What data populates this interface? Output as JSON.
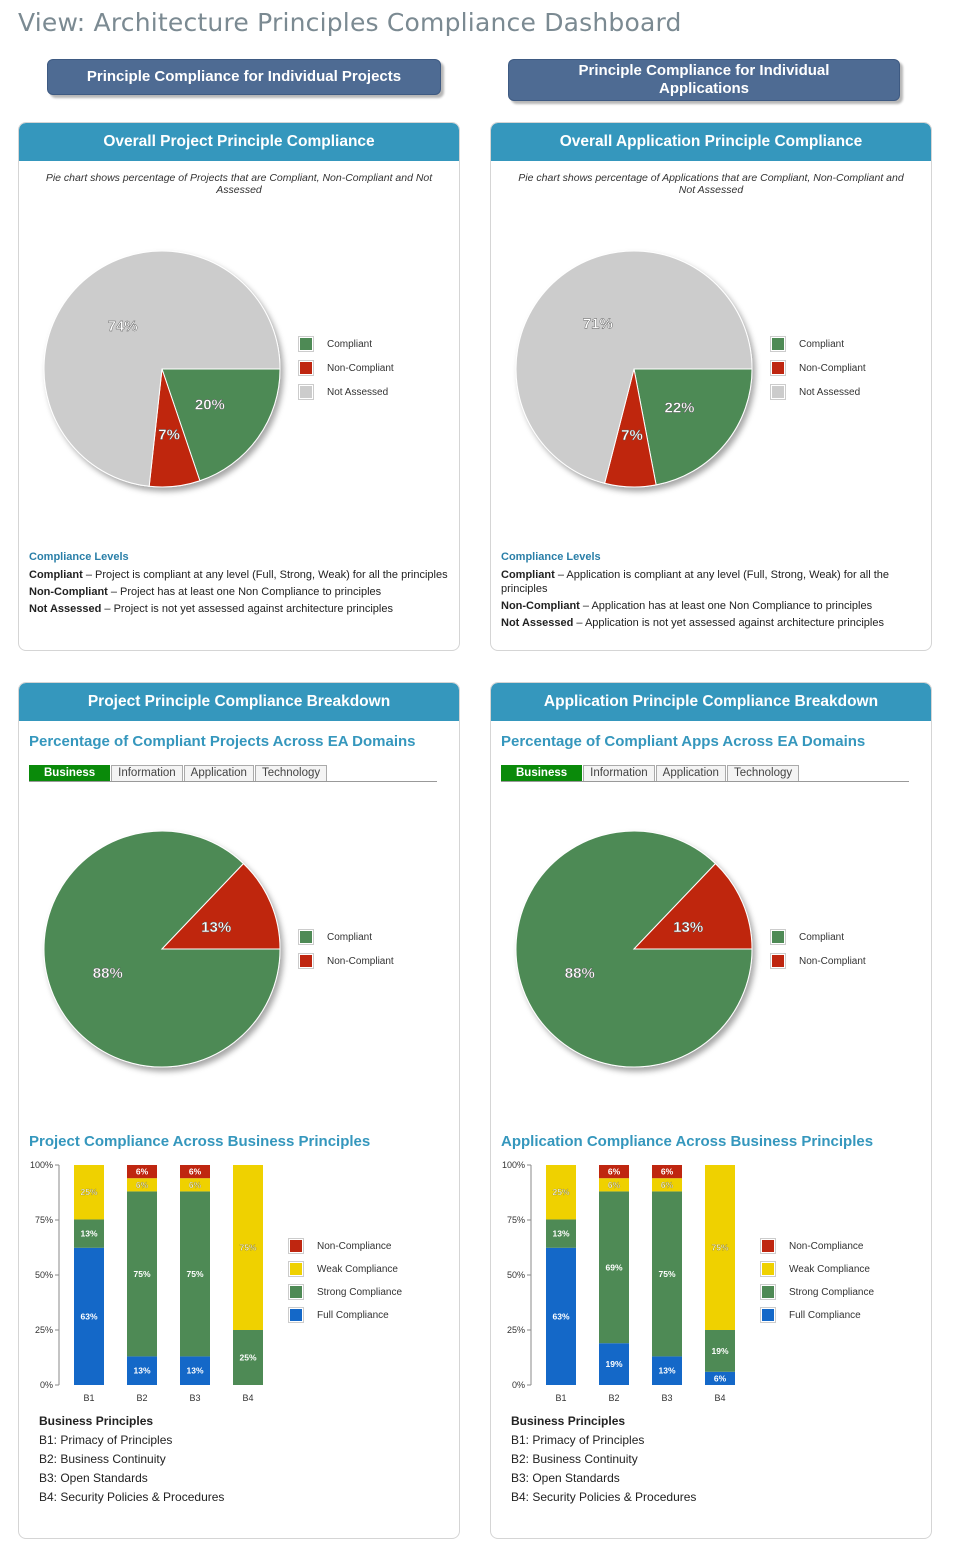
{
  "page": {
    "title": "View: Architecture Principles Compliance Dashboard"
  },
  "nav": {
    "projects_btn": "Principle Compliance for Individual Projects",
    "apps_btn": "Principle Compliance for Individual Applications"
  },
  "colors": {
    "compliant": "#4e8a55",
    "non_compliant": "#bf2610",
    "not_assessed": "#cccccc",
    "weak": "#efd100",
    "full": "#1468c8",
    "header": "#3597bd",
    "active_tab": "#0a8a0a"
  },
  "legend_labels": {
    "compliant": "Compliant",
    "non_compliant": "Non-Compliant",
    "not_assessed": "Not Assessed",
    "non_compliance": "Non-Compliance",
    "weak": "Weak Compliance",
    "strong": "Strong Compliance",
    "full": "Full Compliance"
  },
  "project_overall": {
    "header": "Overall Project Principle Compliance",
    "caption": "Pie chart shows percentage of Projects that are Compliant, Non-Compliant and Not Assessed",
    "levels_title": "Compliance Levels",
    "levels": [
      {
        "term": "Compliant",
        "desc": " – Project is compliant at any level (Full, Strong, Weak) for all the principles"
      },
      {
        "term": "Non-Compliant",
        "desc": " – Project has at least one Non Compliance to principles"
      },
      {
        "term": "Not Assessed",
        "desc": " – Project is not yet assessed against architecture principles"
      }
    ]
  },
  "app_overall": {
    "header": "Overall Application Principle Compliance",
    "caption": "Pie chart shows percentage of Applications that are Compliant, Non-Compliant and Not Assessed",
    "levels_title": "Compliance Levels",
    "levels": [
      {
        "term": "Compliant",
        "desc": " – Application is compliant at any level (Full, Strong, Weak) for all the principles"
      },
      {
        "term": "Non-Compliant",
        "desc": " – Application has at least one Non Compliance to principles"
      },
      {
        "term": "Not Assessed",
        "desc": " – Application is not yet assessed against architecture principles"
      }
    ]
  },
  "project_breakdown": {
    "header": "Project Principle Compliance Breakdown",
    "domains_title": "Percentage of Compliant Projects Across EA Domains",
    "tabs": [
      "Business",
      "Information",
      "Application",
      "Technology"
    ],
    "principles_title": "Project Compliance Across Business Principles",
    "bp_title": "Business Principles",
    "bp_items": [
      "B1:  Primacy of Principles",
      "B2:  Business Continuity",
      "B3:  Open Standards",
      "B4:  Security Policies & Procedures"
    ]
  },
  "app_breakdown": {
    "header": "Application Principle Compliance Breakdown",
    "domains_title": "Percentage of Compliant Apps Across EA Domains",
    "tabs": [
      "Business",
      "Information",
      "Application",
      "Technology"
    ],
    "principles_title": "Application Compliance Across Business Principles",
    "bp_title": "Business Principles",
    "bp_items": [
      "B1:  Primacy of Principles",
      "B2:  Business Continuity",
      "B3:  Open Standards",
      "B4:  Security Policies & Procedures"
    ]
  },
  "chart_data": [
    {
      "id": "proj_overall",
      "type": "pie",
      "categories": [
        "Compliant",
        "Non-Compliant",
        "Not Assessed"
      ],
      "values": [
        20,
        7,
        74
      ],
      "labels": [
        "20%",
        "7%",
        "74%"
      ]
    },
    {
      "id": "app_overall",
      "type": "pie",
      "categories": [
        "Compliant",
        "Non-Compliant",
        "Not Assessed"
      ],
      "values": [
        22,
        7,
        71
      ],
      "labels": [
        "22%",
        "7%",
        "71%"
      ]
    },
    {
      "id": "proj_domain",
      "type": "pie",
      "categories": [
        "Compliant",
        "Non-Compliant"
      ],
      "values": [
        88,
        13
      ],
      "labels": [
        "88%",
        "13%"
      ]
    },
    {
      "id": "app_domain",
      "type": "pie",
      "categories": [
        "Compliant",
        "Non-Compliant"
      ],
      "values": [
        88,
        13
      ],
      "labels": [
        "88%",
        "13%"
      ]
    },
    {
      "id": "proj_principles",
      "type": "bar",
      "stacked": true,
      "categories": [
        "B1",
        "B2",
        "B3",
        "B4"
      ],
      "yticks": [
        "0%",
        "25%",
        "50%",
        "75%",
        "100%"
      ],
      "ylim": [
        0,
        100
      ],
      "series": [
        {
          "name": "Full Compliance",
          "values": [
            63,
            13,
            13,
            0
          ],
          "labels": [
            "63%",
            "13%",
            "13%",
            ""
          ]
        },
        {
          "name": "Strong Compliance",
          "values": [
            13,
            75,
            75,
            25
          ],
          "labels": [
            "13%",
            "75%",
            "75%",
            "25%"
          ]
        },
        {
          "name": "Weak Compliance",
          "values": [
            25,
            6,
            6,
            75
          ],
          "labels": [
            "25%",
            "6%",
            "6%",
            "75%"
          ]
        },
        {
          "name": "Non-Compliance",
          "values": [
            0,
            6,
            6,
            0
          ],
          "labels": [
            "",
            "6%",
            "6%",
            ""
          ]
        }
      ]
    },
    {
      "id": "app_principles",
      "type": "bar",
      "stacked": true,
      "categories": [
        "B1",
        "B2",
        "B3",
        "B4"
      ],
      "yticks": [
        "0%",
        "25%",
        "50%",
        "75%",
        "100%"
      ],
      "ylim": [
        0,
        100
      ],
      "series": [
        {
          "name": "Full Compliance",
          "values": [
            63,
            19,
            13,
            6
          ],
          "labels": [
            "63%",
            "19%",
            "13%",
            "6%"
          ]
        },
        {
          "name": "Strong Compliance",
          "values": [
            13,
            69,
            75,
            19
          ],
          "labels": [
            "13%",
            "69%",
            "75%",
            "19%"
          ]
        },
        {
          "name": "Weak Compliance",
          "values": [
            25,
            6,
            6,
            75
          ],
          "labels": [
            "25%",
            "6%",
            "6%",
            "75%"
          ]
        },
        {
          "name": "Non-Compliance",
          "values": [
            0,
            6,
            6,
            0
          ],
          "labels": [
            "",
            "6%",
            "6%",
            ""
          ]
        }
      ]
    }
  ]
}
